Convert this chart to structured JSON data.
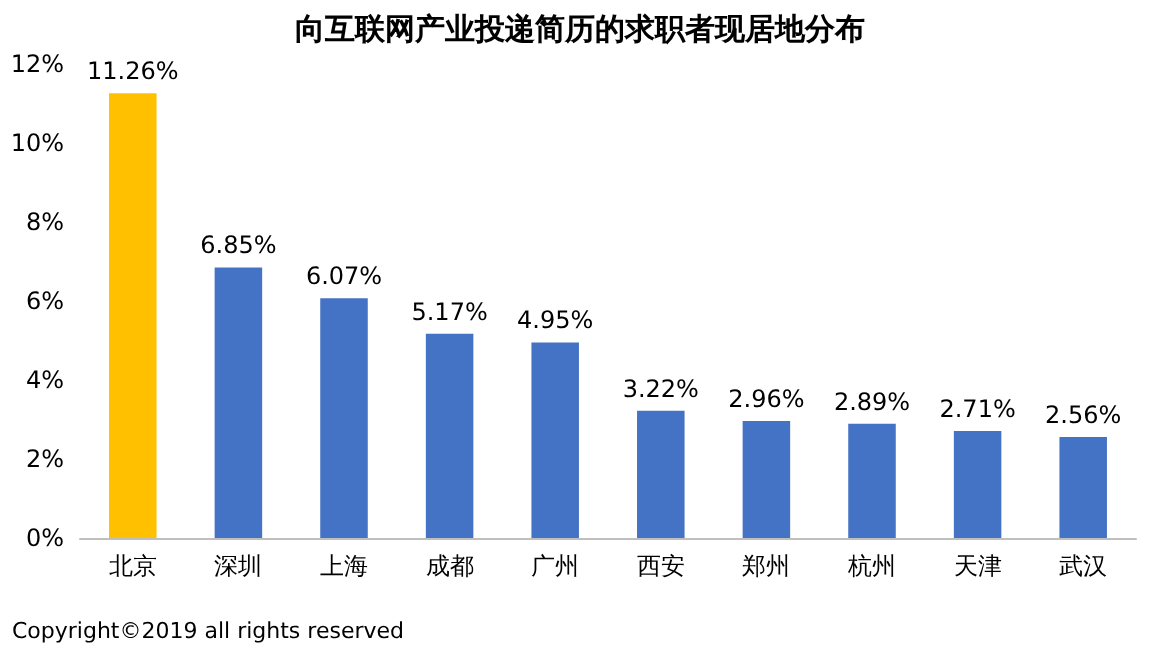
{
  "chart_data": {
    "type": "bar",
    "title": "向互联网产业投递简历的求职者现居地分布",
    "categories": [
      "北京",
      "深圳",
      "上海",
      "成都",
      "广州",
      "西安",
      "郑州",
      "杭州",
      "天津",
      "武汉"
    ],
    "values": [
      11.26,
      6.85,
      6.07,
      5.17,
      4.95,
      3.22,
      2.96,
      2.89,
      2.71,
      2.56
    ],
    "colors": [
      "#ffc000",
      "#4472c4",
      "#4472c4",
      "#4472c4",
      "#4472c4",
      "#4472c4",
      "#4472c4",
      "#4472c4",
      "#4472c4",
      "#4472c4"
    ],
    "value_labels": [
      "11.26%",
      "6.85%",
      "6.07%",
      "5.17%",
      "4.95%",
      "3.22%",
      "2.96%",
      "2.89%",
      "2.71%",
      "2.56%"
    ],
    "ylim": [
      0,
      12
    ],
    "yticks": [
      {
        "value": 0,
        "label": "0%"
      },
      {
        "value": 2,
        "label": "2%"
      },
      {
        "value": 4,
        "label": "4%"
      },
      {
        "value": 6,
        "label": "6%"
      },
      {
        "value": 8,
        "label": "8%"
      },
      {
        "value": 10,
        "label": "10%"
      },
      {
        "value": 12,
        "label": "12%"
      }
    ],
    "grid": false,
    "annotations": [
      "Copyright©2019 all rights reserved"
    ]
  }
}
